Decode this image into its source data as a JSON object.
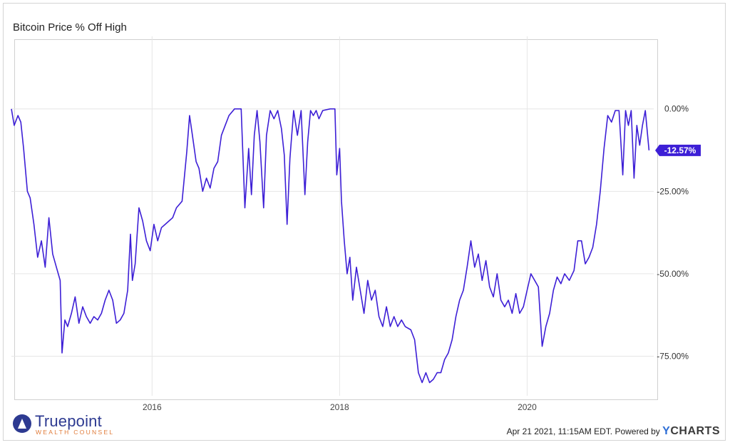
{
  "chart_data": {
    "type": "line",
    "title": "Bitcoin Price % Off High",
    "xlabel": "",
    "ylabel": "",
    "x_ticks": [
      "2016",
      "2018",
      "2020"
    ],
    "y_ticks": [
      "0.00%",
      "-25.00%",
      "-50.00%",
      "-75.00%"
    ],
    "ylim": [
      -87,
      22
    ],
    "xlim": [
      2014.5,
      2021.35
    ],
    "grid": true,
    "last_value_label": "-12.57%",
    "series": [
      {
        "color": "#3d1fd6",
        "points": [
          [
            2014.5,
            0
          ],
          [
            2014.53,
            -5
          ],
          [
            2014.57,
            -2
          ],
          [
            2014.6,
            -4
          ],
          [
            2014.63,
            -12
          ],
          [
            2014.67,
            -25
          ],
          [
            2014.7,
            -27
          ],
          [
            2014.74,
            -35
          ],
          [
            2014.78,
            -45
          ],
          [
            2014.82,
            -40
          ],
          [
            2014.86,
            -48
          ],
          [
            2014.9,
            -33
          ],
          [
            2014.94,
            -44
          ],
          [
            2014.98,
            -48
          ],
          [
            2015.02,
            -52
          ],
          [
            2015.04,
            -74
          ],
          [
            2015.07,
            -64
          ],
          [
            2015.1,
            -66
          ],
          [
            2015.14,
            -62
          ],
          [
            2015.18,
            -57
          ],
          [
            2015.22,
            -65
          ],
          [
            2015.26,
            -60
          ],
          [
            2015.3,
            -63
          ],
          [
            2015.34,
            -65
          ],
          [
            2015.38,
            -63
          ],
          [
            2015.42,
            -64
          ],
          [
            2015.46,
            -62
          ],
          [
            2015.5,
            -58
          ],
          [
            2015.54,
            -55
          ],
          [
            2015.58,
            -58
          ],
          [
            2015.62,
            -65
          ],
          [
            2015.66,
            -64
          ],
          [
            2015.7,
            -62
          ],
          [
            2015.74,
            -55
          ],
          [
            2015.77,
            -38
          ],
          [
            2015.79,
            -52
          ],
          [
            2015.82,
            -47
          ],
          [
            2015.86,
            -30
          ],
          [
            2015.9,
            -34
          ],
          [
            2015.94,
            -40
          ],
          [
            2015.98,
            -43
          ],
          [
            2016.02,
            -35
          ],
          [
            2016.06,
            -40
          ],
          [
            2016.1,
            -36
          ],
          [
            2016.14,
            -35
          ],
          [
            2016.18,
            -34
          ],
          [
            2016.22,
            -33
          ],
          [
            2016.26,
            -30
          ],
          [
            2016.32,
            -28
          ],
          [
            2016.37,
            -13
          ],
          [
            2016.4,
            -2
          ],
          [
            2016.43,
            -8
          ],
          [
            2016.47,
            -16
          ],
          [
            2016.5,
            -18
          ],
          [
            2016.54,
            -25
          ],
          [
            2016.58,
            -21
          ],
          [
            2016.62,
            -24
          ],
          [
            2016.66,
            -18
          ],
          [
            2016.7,
            -16
          ],
          [
            2016.74,
            -8
          ],
          [
            2016.78,
            -5
          ],
          [
            2016.82,
            -2
          ],
          [
            2016.88,
            0
          ],
          [
            2016.95,
            0
          ],
          [
            2016.99,
            -30
          ],
          [
            2017.03,
            -12
          ],
          [
            2017.06,
            -26
          ],
          [
            2017.09,
            -8
          ],
          [
            2017.12,
            -0.5
          ],
          [
            2017.15,
            -10
          ],
          [
            2017.19,
            -30
          ],
          [
            2017.22,
            -8
          ],
          [
            2017.26,
            -0.5
          ],
          [
            2017.3,
            -3
          ],
          [
            2017.34,
            -0.5
          ],
          [
            2017.38,
            -6
          ],
          [
            2017.41,
            -14
          ],
          [
            2017.44,
            -35
          ],
          [
            2017.47,
            -15
          ],
          [
            2017.51,
            -0.5
          ],
          [
            2017.55,
            -8
          ],
          [
            2017.59,
            -0.5
          ],
          [
            2017.63,
            -26
          ],
          [
            2017.66,
            -10
          ],
          [
            2017.69,
            -0.5
          ],
          [
            2017.72,
            -2
          ],
          [
            2017.75,
            -0.5
          ],
          [
            2017.78,
            -3
          ],
          [
            2017.82,
            -0.5
          ],
          [
            2017.9,
            0
          ],
          [
            2017.95,
            0
          ],
          [
            2017.97,
            -20
          ],
          [
            2018.0,
            -12
          ],
          [
            2018.02,
            -28
          ],
          [
            2018.05,
            -40
          ],
          [
            2018.08,
            -50
          ],
          [
            2018.11,
            -45
          ],
          [
            2018.14,
            -58
          ],
          [
            2018.18,
            -48
          ],
          [
            2018.22,
            -55
          ],
          [
            2018.26,
            -62
          ],
          [
            2018.3,
            -52
          ],
          [
            2018.34,
            -58
          ],
          [
            2018.38,
            -55
          ],
          [
            2018.42,
            -63
          ],
          [
            2018.46,
            -66
          ],
          [
            2018.5,
            -60
          ],
          [
            2018.54,
            -66
          ],
          [
            2018.58,
            -63
          ],
          [
            2018.62,
            -66
          ],
          [
            2018.66,
            -64
          ],
          [
            2018.7,
            -66
          ],
          [
            2018.76,
            -67
          ],
          [
            2018.8,
            -70
          ],
          [
            2018.84,
            -80
          ],
          [
            2018.88,
            -83
          ],
          [
            2018.92,
            -80
          ],
          [
            2018.96,
            -83
          ],
          [
            2019.0,
            -82
          ],
          [
            2019.04,
            -80
          ],
          [
            2019.08,
            -80
          ],
          [
            2019.12,
            -76
          ],
          [
            2019.16,
            -74
          ],
          [
            2019.2,
            -70
          ],
          [
            2019.24,
            -63
          ],
          [
            2019.28,
            -58
          ],
          [
            2019.32,
            -55
          ],
          [
            2019.36,
            -48
          ],
          [
            2019.4,
            -40
          ],
          [
            2019.44,
            -48
          ],
          [
            2019.48,
            -44
          ],
          [
            2019.52,
            -52
          ],
          [
            2019.56,
            -46
          ],
          [
            2019.6,
            -54
          ],
          [
            2019.64,
            -57
          ],
          [
            2019.68,
            -50
          ],
          [
            2019.72,
            -58
          ],
          [
            2019.76,
            -60
          ],
          [
            2019.8,
            -58
          ],
          [
            2019.84,
            -62
          ],
          [
            2019.88,
            -56
          ],
          [
            2019.92,
            -62
          ],
          [
            2019.96,
            -60
          ],
          [
            2020.0,
            -55
          ],
          [
            2020.04,
            -50
          ],
          [
            2020.08,
            -52
          ],
          [
            2020.12,
            -54
          ],
          [
            2020.16,
            -72
          ],
          [
            2020.2,
            -66
          ],
          [
            2020.24,
            -62
          ],
          [
            2020.28,
            -55
          ],
          [
            2020.32,
            -51
          ],
          [
            2020.36,
            -53
          ],
          [
            2020.4,
            -50
          ],
          [
            2020.45,
            -52
          ],
          [
            2020.5,
            -49
          ],
          [
            2020.54,
            -40
          ],
          [
            2020.58,
            -40
          ],
          [
            2020.62,
            -47
          ],
          [
            2020.66,
            -45
          ],
          [
            2020.7,
            -42
          ],
          [
            2020.74,
            -35
          ],
          [
            2020.78,
            -25
          ],
          [
            2020.82,
            -12
          ],
          [
            2020.86,
            -2
          ],
          [
            2020.9,
            -4
          ],
          [
            2020.94,
            -0.5
          ],
          [
            2020.98,
            -0.5
          ],
          [
            2021.02,
            -20
          ],
          [
            2021.05,
            -0.5
          ],
          [
            2021.08,
            -5
          ],
          [
            2021.11,
            -0.5
          ],
          [
            2021.14,
            -21
          ],
          [
            2021.17,
            -5
          ],
          [
            2021.2,
            -11
          ],
          [
            2021.23,
            -5
          ],
          [
            2021.26,
            -0.5
          ],
          [
            2021.3,
            -12.57
          ]
        ]
      }
    ]
  },
  "branding": {
    "logo_name": "Truepoint",
    "logo_tagline": "WEALTH COUNSEL",
    "timestamp": "Apr 21 2021, 11:15AM EDT.",
    "powered_by": "Powered by",
    "ycharts_y": "Y",
    "ycharts_rest": "CHARTS"
  }
}
